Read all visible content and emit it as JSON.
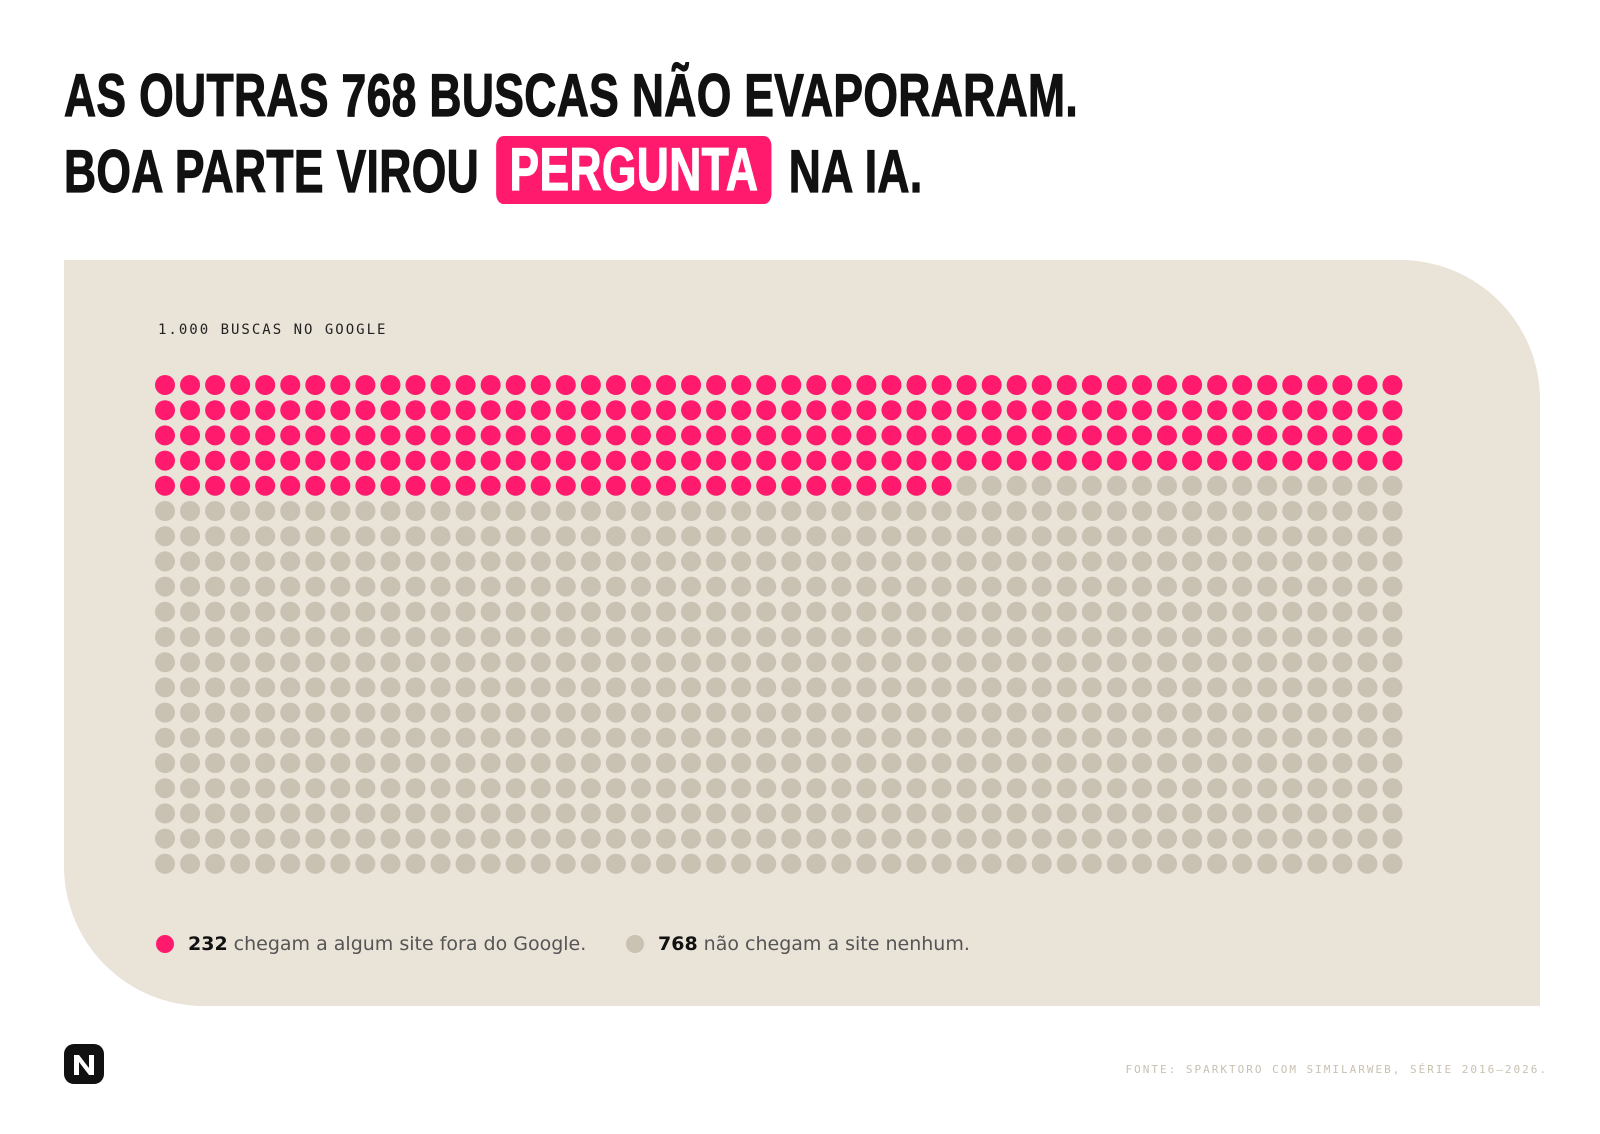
{
  "headline": {
    "line1": "AS OUTRAS 768 BUSCAS NÃO EVAPORARAM.",
    "line2_before": "BOA PARTE VIROU",
    "line2_highlight": "PERGUNTA",
    "line2_after": "NA IA."
  },
  "colors": {
    "accent": "#ff1a6e",
    "muted_dot": "#c9c1b1",
    "panel_bg": "#e9e3d8",
    "text": "#111111"
  },
  "chart_data": {
    "type": "waffle",
    "title": "1.000 BUSCAS NO GOOGLE",
    "total": 1000,
    "columns": 50,
    "rows": 20,
    "fill_order": "row-major, top-left first",
    "series": [
      {
        "name": "chegam a algum site fora do Google.",
        "value": 232,
        "color": "#ff1a6e"
      },
      {
        "name": "não chegam a site nenhum.",
        "value": 768,
        "color": "#c9c1b1"
      }
    ]
  },
  "legend": [
    {
      "value": "232",
      "text": "chegam a algum site fora do Google.",
      "icon": "pink-dot"
    },
    {
      "value": "768",
      "text": "não chegam a site nenhum.",
      "icon": "beige-dot"
    }
  ],
  "footer": {
    "logo_icon": "n-logo-icon",
    "source": "FONTE: SPARKTORO COM SIMILARWEB, SÉRIE 2016–2026."
  }
}
